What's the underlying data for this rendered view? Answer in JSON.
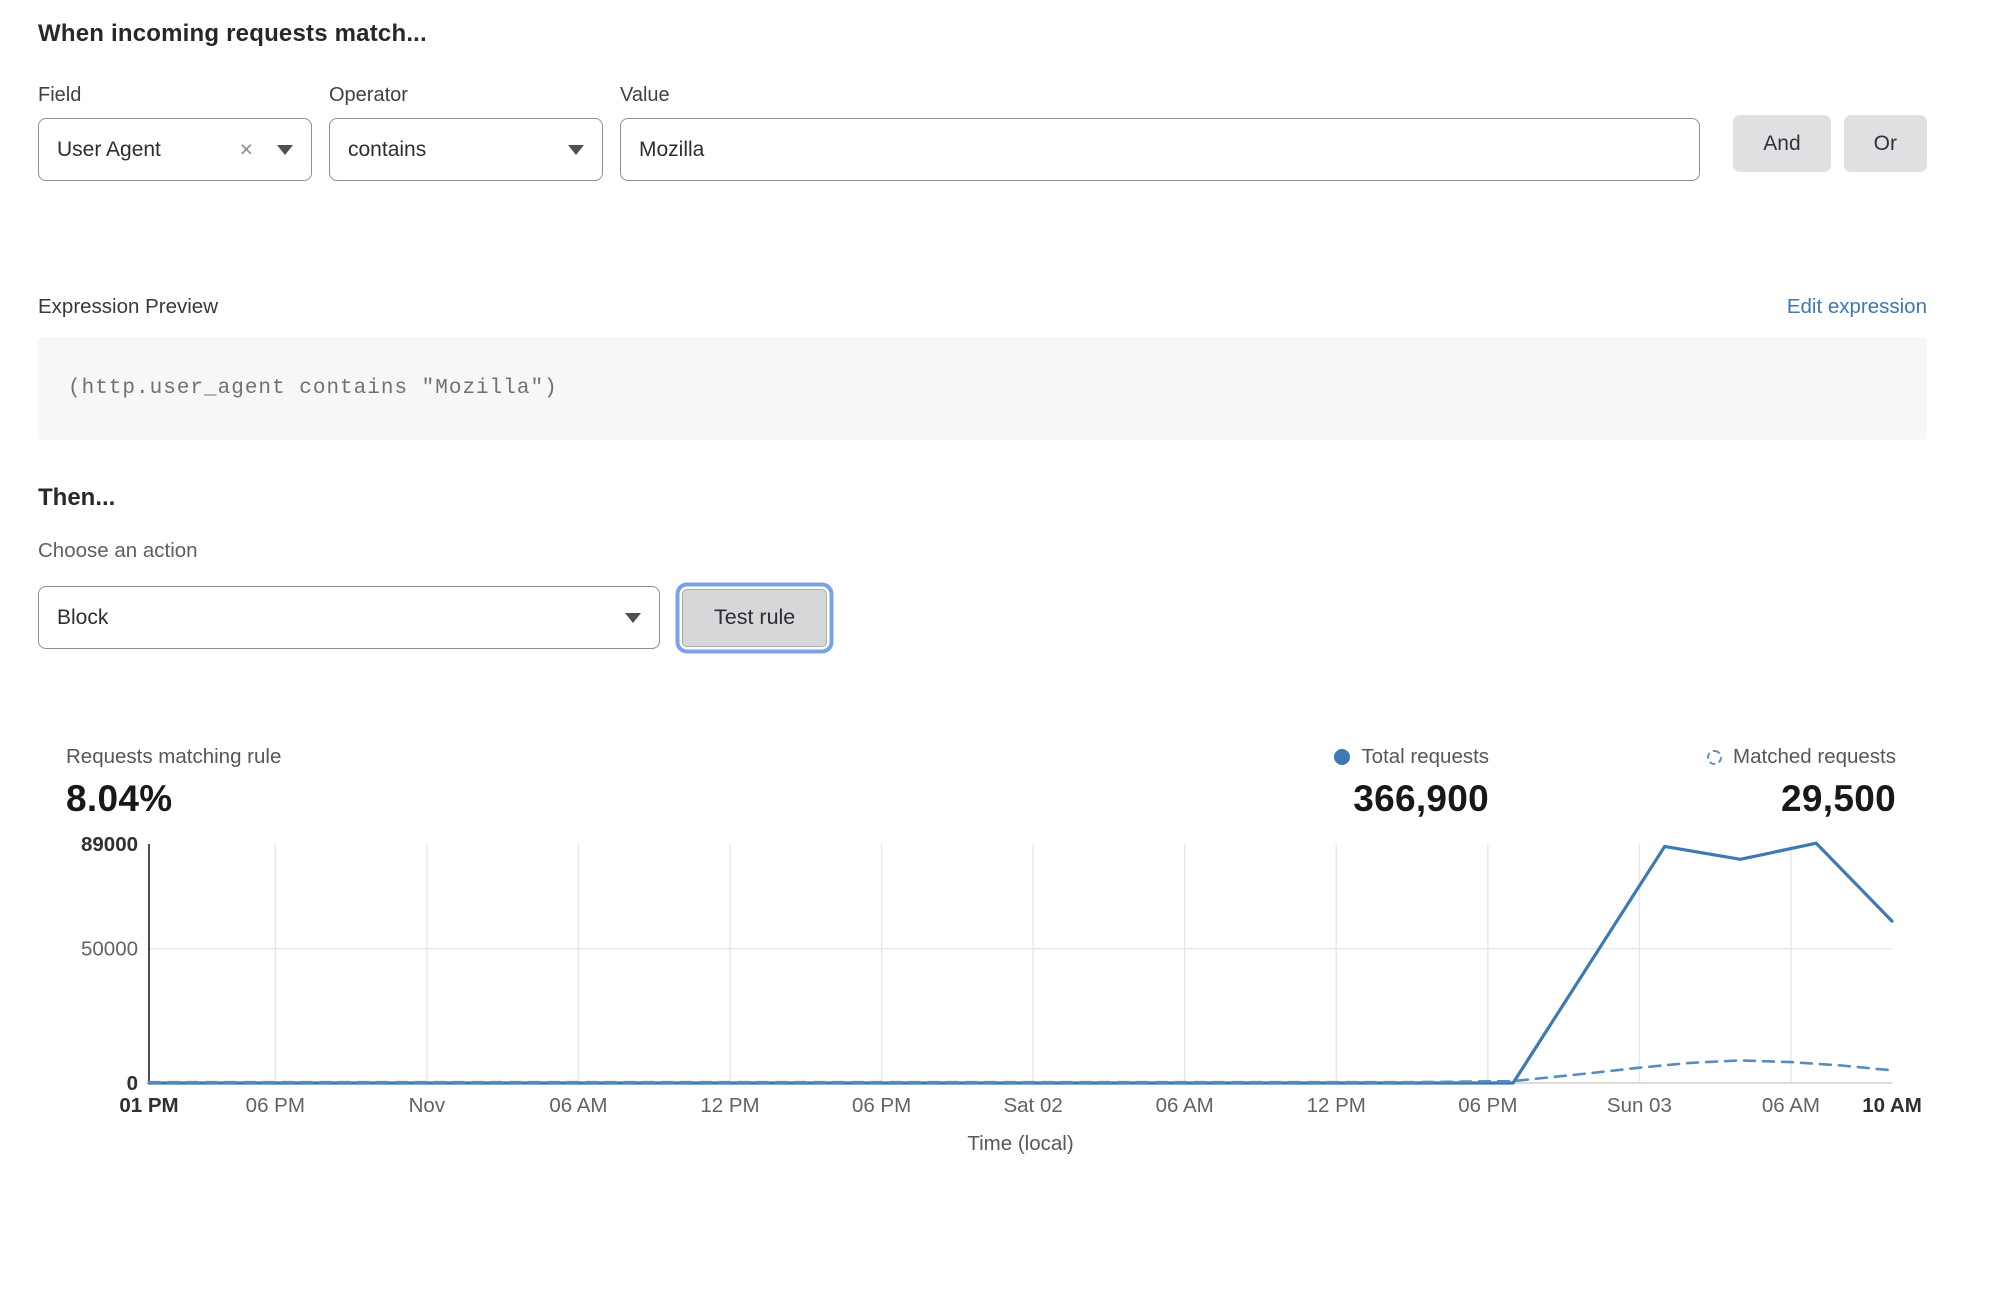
{
  "icons": {
    "clear": "×"
  },
  "colors": {
    "accent_blue": "#3d79b2",
    "dashed_blue": "#568cc0",
    "link_blue": "#3d79b2",
    "focus_ring_blue": "#79a3e6",
    "button_gray": "#dfe0e1",
    "code_bg": "#f7f7f8"
  },
  "rule_builder": {
    "heading": "When incoming requests match...",
    "field": {
      "label": "Field",
      "value": "User Agent"
    },
    "operator": {
      "label": "Operator",
      "value": "contains"
    },
    "value": {
      "label": "Value",
      "value": "Mozilla"
    },
    "and_button": "And",
    "or_button": "Or"
  },
  "expression": {
    "label": "Expression Preview",
    "edit_link": "Edit expression",
    "code": "(http.user_agent contains \"Mozilla\")"
  },
  "action": {
    "heading": "Then...",
    "choose_label": "Choose an action",
    "selected": "Block",
    "test_button": "Test rule"
  },
  "stats": {
    "matching": {
      "label": "Requests matching rule",
      "value": "8.04%"
    },
    "total": {
      "label": "Total requests",
      "value": "366,900",
      "marker": "solid-dot"
    },
    "matched": {
      "label": "Matched requests",
      "value": "29,500",
      "marker": "dashed-circle"
    }
  },
  "chart_data": {
    "type": "line",
    "xlabel": "Time (local)",
    "x_unit": "hours from first tick (01 PM, two days before Sun 03)",
    "xlim": [
      0,
      69
    ],
    "ylim": [
      0,
      89000
    ],
    "grid": true,
    "legend_position": "above-right (stats row)",
    "y_ticks": [
      {
        "value": 89000,
        "label": "89000",
        "bold": true
      },
      {
        "value": 50000,
        "label": "50000",
        "bold": false,
        "gridline": true
      },
      {
        "value": 0,
        "label": "0",
        "bold": true
      }
    ],
    "x_ticks": [
      {
        "t": 0,
        "label": "01 PM",
        "bold": true
      },
      {
        "t": 5,
        "label": "06 PM",
        "bold": false
      },
      {
        "t": 11,
        "label": "Nov",
        "bold": false
      },
      {
        "t": 17,
        "label": "06 AM",
        "bold": false
      },
      {
        "t": 23,
        "label": "12 PM",
        "bold": false
      },
      {
        "t": 29,
        "label": "06 PM",
        "bold": false
      },
      {
        "t": 35,
        "label": "Sat 02",
        "bold": false
      },
      {
        "t": 41,
        "label": "06 AM",
        "bold": false
      },
      {
        "t": 47,
        "label": "12 PM",
        "bold": false
      },
      {
        "t": 53,
        "label": "06 PM",
        "bold": false
      },
      {
        "t": 59,
        "label": "Sun 03",
        "bold": false
      },
      {
        "t": 65,
        "label": "06 AM",
        "bold": false
      },
      {
        "t": 69,
        "label": "10 AM",
        "bold": true
      }
    ],
    "series": [
      {
        "name": "Total requests",
        "style": "solid",
        "points": [
          [
            0,
            0
          ],
          [
            54,
            0
          ],
          [
            60,
            88100
          ],
          [
            63,
            83300
          ],
          [
            66,
            89300
          ],
          [
            69,
            60300
          ]
        ]
      },
      {
        "name": "Matched requests",
        "style": "dashed",
        "points": [
          [
            0,
            300
          ],
          [
            50,
            300
          ],
          [
            54,
            700
          ],
          [
            57,
            3600
          ],
          [
            59,
            5700
          ],
          [
            61,
            7500
          ],
          [
            63,
            8400
          ],
          [
            65,
            7800
          ],
          [
            67,
            6500
          ],
          [
            69,
            4700
          ]
        ]
      }
    ]
  }
}
